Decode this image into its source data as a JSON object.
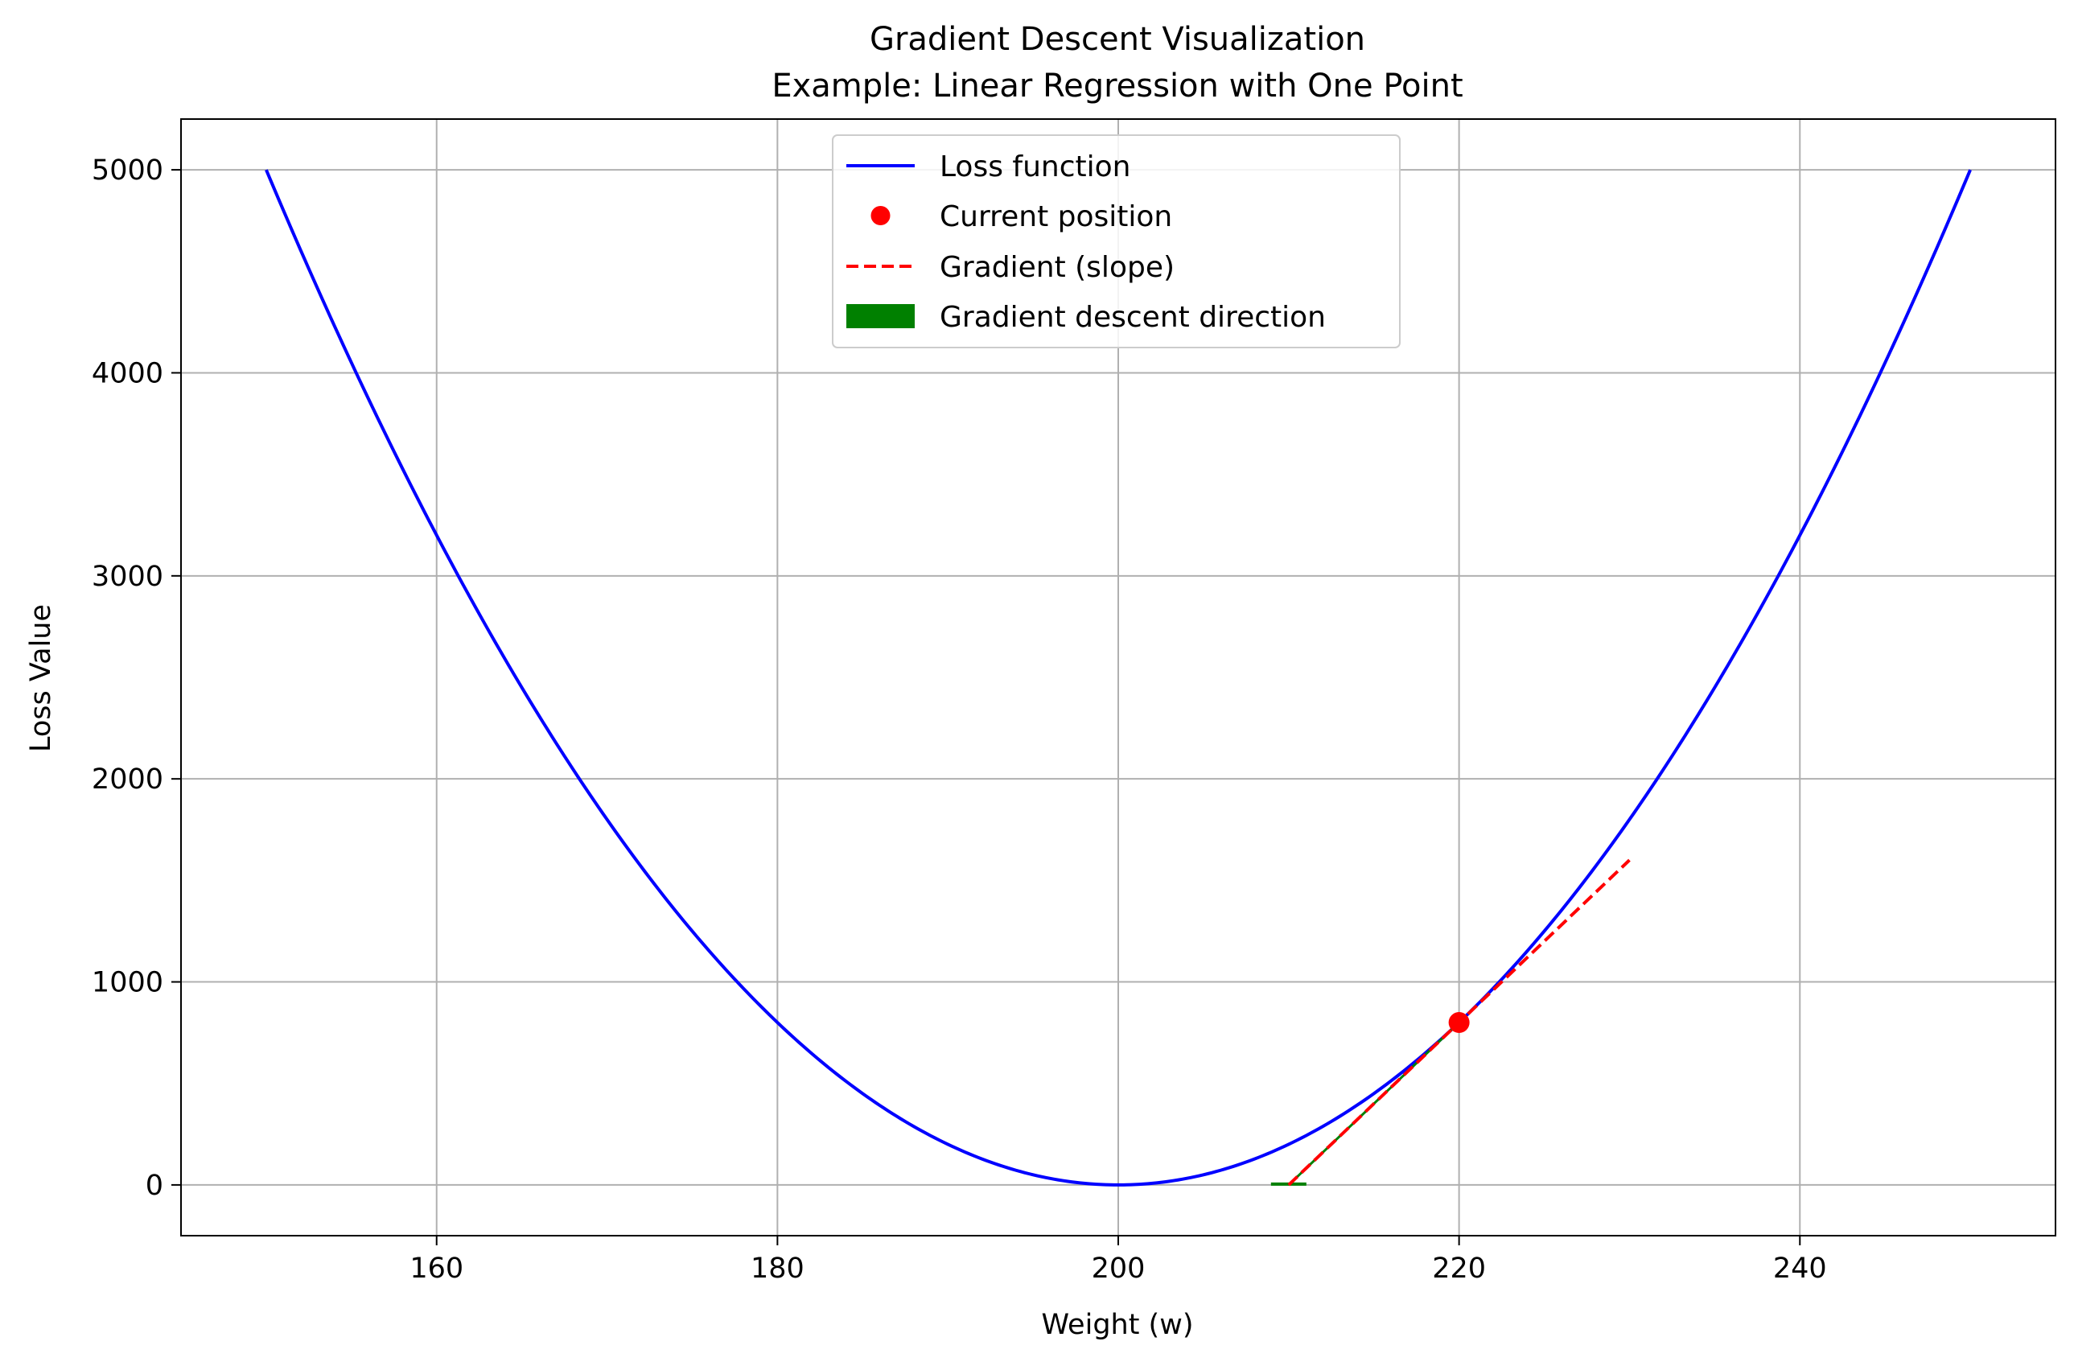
{
  "chart_data": {
    "type": "line",
    "title": "Gradient Descent Visualization",
    "subtitle": "Example: Linear Regression with One Point",
    "xlabel": "Weight (w)",
    "ylabel": "Loss Value",
    "xlim": [
      145,
      255
    ],
    "ylim": [
      -250,
      5250
    ],
    "xticks": [
      160,
      180,
      200,
      220,
      240
    ],
    "yticks": [
      0,
      1000,
      2000,
      3000,
      4000,
      5000
    ],
    "grid": true,
    "legend_position": "upper center",
    "colors": {
      "loss": "#0000ff",
      "point": "#ff0000",
      "gradient": "#ff0000",
      "descent": "#008000",
      "grid": "#b0b0b0"
    },
    "series": [
      {
        "name": "Loss function",
        "kind": "line",
        "function": "2*(w-200)^2",
        "x_range": [
          150,
          250
        ],
        "color": "#0000ff"
      },
      {
        "name": "Current position",
        "kind": "point",
        "x": 220,
        "y": 800,
        "color": "#ff0000"
      },
      {
        "name": "Gradient (slope)",
        "kind": "dashed-line",
        "x": [
          210,
          230
        ],
        "y": [
          0,
          1600
        ],
        "color": "#ff0000"
      },
      {
        "name": "Gradient descent direction",
        "kind": "arrow",
        "from": [
          220,
          800
        ],
        "to": [
          210,
          0
        ],
        "color": "#008000"
      }
    ]
  }
}
